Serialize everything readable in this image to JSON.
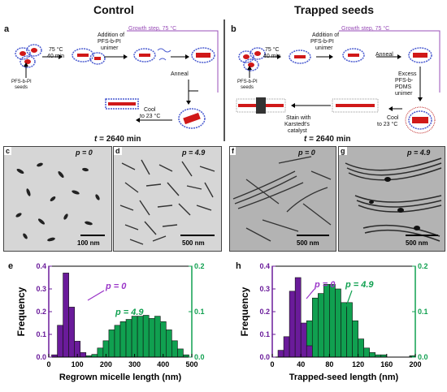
{
  "headers": {
    "left": "Control",
    "right": "Trapped seeds"
  },
  "panel_letters": {
    "a": "a",
    "b": "b",
    "c": "c",
    "d": "d",
    "e": "e",
    "f": "f",
    "g": "g",
    "h": "h"
  },
  "scheme_a": {
    "growth_label": "Growth step, 75 °C",
    "cond1a": "75 °C",
    "cond1b": "40 min",
    "addition_a": "Addition of",
    "addition_b": "PFS",
    "addition_c": "-b-PI",
    "addition_d": "unimer",
    "seed_a": "PFS",
    "seed_b": "-b-PI",
    "seed_c": "seeds",
    "anneal": "Anneal",
    "cool_a": "Cool",
    "cool_b": "to 23 °C"
  },
  "scheme_b": {
    "growth_label": "Growth step, 75 °C",
    "cond1a": "75 °C",
    "cond1b": "40 min",
    "addition_a": "Addition of",
    "addition_b": "PFS",
    "addition_c": "-b-PI",
    "addition_d": "unimer",
    "seed_a": "PFS",
    "seed_b": "-b-PI",
    "seed_c": "seeds",
    "anneal": "Anneal",
    "excess_a": "Excess",
    "excess_b": "PFS",
    "excess_c": "-b-",
    "excess_d": "PDMS",
    "excess_e": "unimer",
    "cool_a": "Cool",
    "cool_b": "to 23 °C",
    "stain_a": "Stain with",
    "stain_b": "Karstedt's",
    "stain_c": "catalyst"
  },
  "time_label": {
    "prefix": "t",
    "value": " = 2640 min"
  },
  "tem": {
    "c": {
      "p": "p",
      "pval": " = 0",
      "scale": "100 nm"
    },
    "d": {
      "p": "p",
      "pval": " = 4.9",
      "scale": "500 nm"
    },
    "f": {
      "p": "p",
      "pval": " = 0",
      "scale": "500 nm"
    },
    "g": {
      "p": "p",
      "pval": " = 4.9",
      "scale": "500 nm"
    }
  },
  "chart_data": [
    {
      "type": "bar",
      "panel": "e",
      "xlabel": "Regrown micelle length (nm)",
      "ylabel": "Frequency",
      "xlim": [
        0,
        500
      ],
      "xticks": [
        "0",
        "100",
        "200",
        "300",
        "400",
        "500"
      ],
      "ylim_left": [
        0,
        0.4
      ],
      "yticks_left": [
        "0.0",
        "0.1",
        "0.2",
        "0.3",
        "0.4"
      ],
      "ylim_right": [
        0,
        0.2
      ],
      "yticks_right": [
        "0.0",
        "0.1",
        "0.2"
      ],
      "series": [
        {
          "name": "p = 0",
          "color": "#6a1b9a",
          "axis": "left",
          "bin_width": 20,
          "bins": [
            {
              "x": 20,
              "y": 0.01
            },
            {
              "x": 40,
              "y": 0.14
            },
            {
              "x": 60,
              "y": 0.37
            },
            {
              "x": 80,
              "y": 0.22
            },
            {
              "x": 100,
              "y": 0.07
            },
            {
              "x": 120,
              "y": 0.02
            }
          ]
        },
        {
          "name": "p = 4.9",
          "color": "#10a050",
          "axis": "right",
          "bin_width": 20,
          "bins": [
            {
              "x": 120,
              "y": 0.003
            },
            {
              "x": 140,
              "y": 0.003
            },
            {
              "x": 160,
              "y": 0.006
            },
            {
              "x": 180,
              "y": 0.02
            },
            {
              "x": 200,
              "y": 0.036
            },
            {
              "x": 220,
              "y": 0.06
            },
            {
              "x": 240,
              "y": 0.07
            },
            {
              "x": 260,
              "y": 0.078
            },
            {
              "x": 280,
              "y": 0.083
            },
            {
              "x": 300,
              "y": 0.09
            },
            {
              "x": 320,
              "y": 0.09
            },
            {
              "x": 340,
              "y": 0.092
            },
            {
              "x": 360,
              "y": 0.085
            },
            {
              "x": 380,
              "y": 0.09
            },
            {
              "x": 400,
              "y": 0.078
            },
            {
              "x": 420,
              "y": 0.06
            },
            {
              "x": 440,
              "y": 0.036
            },
            {
              "x": 460,
              "y": 0.018
            },
            {
              "x": 480,
              "y": 0.005
            }
          ]
        }
      ],
      "annotations": {
        "a_p": "p",
        "a_v": " = 0",
        "b_p": "p",
        "b_v": " = 4.9"
      }
    },
    {
      "type": "bar",
      "panel": "h",
      "xlabel": "Trapped-seed length (nm)",
      "ylabel": "Frequency",
      "xlim": [
        0,
        200
      ],
      "xticks": [
        "0",
        "40",
        "80",
        "120",
        "160",
        "200"
      ],
      "ylim_left": [
        0,
        0.4
      ],
      "yticks_left": [
        "0.0",
        "0.1",
        "0.2",
        "0.3",
        "0.4"
      ],
      "ylim_right": [
        0,
        0.2
      ],
      "yticks_right": [
        "0.0",
        "0.1",
        "0.2"
      ],
      "series": [
        {
          "name": "p = 0",
          "color": "#6a1b9a",
          "axis": "left",
          "bin_width": 8,
          "bins": [
            {
              "x": 12,
              "y": 0.03
            },
            {
              "x": 20,
              "y": 0.09
            },
            {
              "x": 28,
              "y": 0.29
            },
            {
              "x": 36,
              "y": 0.35
            },
            {
              "x": 44,
              "y": 0.15
            },
            {
              "x": 52,
              "y": 0.05
            }
          ]
        },
        {
          "name": "p = 4.9",
          "color": "#10a050",
          "axis": "right",
          "bin_width": 8,
          "bins": [
            {
              "x": 36,
              "y": 0.02
            },
            {
              "x": 44,
              "y": 0.06
            },
            {
              "x": 52,
              "y": 0.08
            },
            {
              "x": 60,
              "y": 0.13
            },
            {
              "x": 68,
              "y": 0.14
            },
            {
              "x": 76,
              "y": 0.16
            },
            {
              "x": 84,
              "y": 0.16
            },
            {
              "x": 92,
              "y": 0.15
            },
            {
              "x": 100,
              "y": 0.12
            },
            {
              "x": 108,
              "y": 0.12
            },
            {
              "x": 116,
              "y": 0.08
            },
            {
              "x": 124,
              "y": 0.04
            },
            {
              "x": 132,
              "y": 0.02
            },
            {
              "x": 140,
              "y": 0.01
            },
            {
              "x": 148,
              "y": 0.005
            },
            {
              "x": 156,
              "y": 0.005
            },
            {
              "x": 196,
              "y": 0.003
            }
          ]
        }
      ],
      "annotations": {
        "a_p": "p",
        "a_v": " = 0",
        "b_p": "p",
        "b_v": " = 4.9"
      }
    }
  ]
}
